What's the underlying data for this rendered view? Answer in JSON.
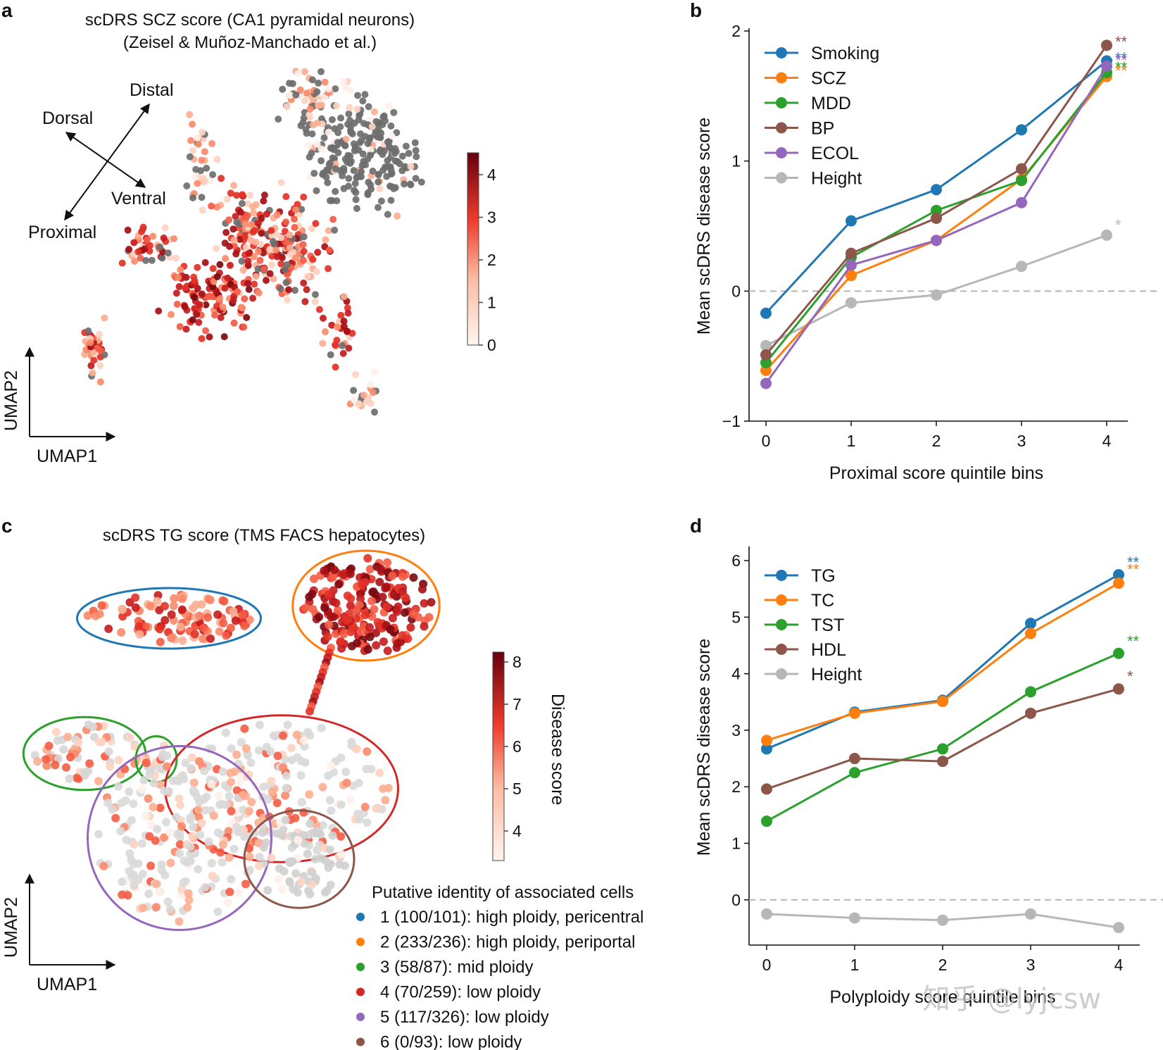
{
  "panels": {
    "a": {
      "letter": "a",
      "title_line1": "scDRS SCZ score (CA1 pyramidal neurons)",
      "title_line2": "(Zeisel & Muñoz-Manchado et al.)",
      "directions": {
        "distal": "Distal",
        "dorsal": "Dorsal",
        "ventral": "Ventral",
        "proximal": "Proximal"
      },
      "umap_x": "UMAP1",
      "umap_y": "UMAP2",
      "colorbar_ticks": [
        "0",
        "1",
        "2",
        "3",
        "4"
      ]
    },
    "c": {
      "letter": "c",
      "title": "scDRS TG score (TMS FACS hepatocytes)",
      "umap_x": "UMAP1",
      "umap_y": "UMAP2",
      "colorbar_label": "Disease score",
      "colorbar_ticks": [
        "4",
        "5",
        "6",
        "7",
        "8"
      ],
      "clusters_title": "Putative identity of associated cells",
      "clusters": [
        {
          "label": "1 (100/101): high ploidy, pericentral",
          "color": "#1f77b4"
        },
        {
          "label": "2 (233/236): high ploidy, periportal",
          "color": "#ff7f0e"
        },
        {
          "label": "3 (58/87): mid ploidy",
          "color": "#2ca02c"
        },
        {
          "label": "4 (70/259): low ploidy",
          "color": "#d62728"
        },
        {
          "label": "5 (117/326): low ploidy",
          "color": "#9467bd"
        },
        {
          "label": "6 (0/93): low ploidy",
          "color": "#8c564b"
        }
      ]
    },
    "watermark": "知乎 @lyjcsw"
  },
  "chart_data": [
    {
      "panel": "b",
      "type": "line",
      "xlabel": "Proximal score quintile bins",
      "ylabel": "Mean scDRS disease score",
      "categories": [
        "0",
        "1",
        "2",
        "3",
        "4"
      ],
      "ylim": [
        -1,
        2
      ],
      "yticks": [
        "−1",
        "0",
        "1",
        "2"
      ],
      "series": [
        {
          "name": "Smoking",
          "color": "#1f77b4",
          "values": [
            -0.17,
            0.54,
            0.78,
            1.24,
            1.77
          ],
          "sig": "**"
        },
        {
          "name": "SCZ",
          "color": "#ff7f0e",
          "values": [
            -0.61,
            0.12,
            0.39,
            0.86,
            1.65
          ],
          "sig": "**"
        },
        {
          "name": "MDD",
          "color": "#2ca02c",
          "values": [
            -0.55,
            0.26,
            0.62,
            0.85,
            1.68
          ],
          "sig": "**"
        },
        {
          "name": "BP",
          "color": "#8c564b",
          "values": [
            -0.49,
            0.29,
            0.56,
            0.94,
            1.89
          ],
          "sig": "**"
        },
        {
          "name": "ECOL",
          "color": "#9467bd",
          "values": [
            -0.71,
            0.2,
            0.39,
            0.68,
            1.73
          ],
          "sig": "**"
        },
        {
          "name": "Height",
          "color": "#b7b7b7",
          "values": [
            -0.42,
            -0.09,
            -0.03,
            0.19,
            0.43
          ],
          "sig": "*"
        }
      ]
    },
    {
      "panel": "d",
      "type": "line",
      "xlabel": "Polyploidy score quintile bins",
      "ylabel": "Mean scDRS disease score",
      "categories": [
        "0",
        "1",
        "2",
        "3",
        "4"
      ],
      "ylim": [
        -0.8,
        6.2
      ],
      "yticks": [
        "0",
        "1",
        "2",
        "3",
        "4",
        "5",
        "6"
      ],
      "series": [
        {
          "name": "TG",
          "color": "#1f77b4",
          "values": [
            2.67,
            3.32,
            3.53,
            4.89,
            5.75
          ],
          "sig": "**"
        },
        {
          "name": "TC",
          "color": "#ff7f0e",
          "values": [
            2.82,
            3.3,
            3.51,
            4.71,
            5.6
          ],
          "sig": "**"
        },
        {
          "name": "TST",
          "color": "#2ca02c",
          "values": [
            1.39,
            2.25,
            2.67,
            3.68,
            4.36
          ],
          "sig": "**"
        },
        {
          "name": "HDL",
          "color": "#8c564b",
          "values": [
            1.96,
            2.5,
            2.45,
            3.3,
            3.73
          ],
          "sig": "*"
        },
        {
          "name": "Height",
          "color": "#b7b7b7",
          "values": [
            -0.25,
            -0.32,
            -0.36,
            -0.25,
            -0.49
          ],
          "sig": ""
        }
      ]
    }
  ]
}
